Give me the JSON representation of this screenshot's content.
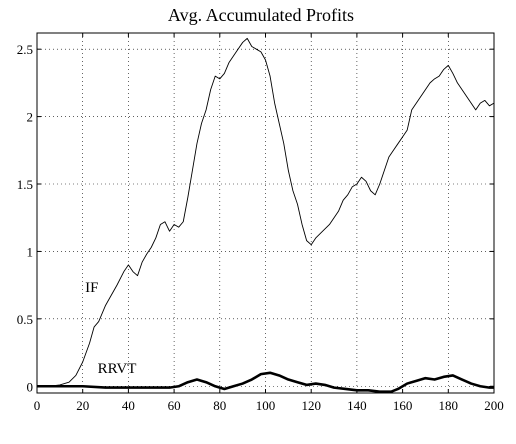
{
  "chart_data": {
    "type": "line",
    "title": "Avg. Accumulated Profits",
    "xlabel": "",
    "ylabel": "",
    "xlim": [
      0,
      200
    ],
    "ylim": [
      -0.05,
      2.62
    ],
    "x_ticks": [
      0,
      20,
      40,
      60,
      80,
      100,
      120,
      140,
      160,
      180,
      200
    ],
    "y_ticks": [
      0,
      0.5,
      1,
      1.5,
      2,
      2.5
    ],
    "y_tick_labels": [
      "0",
      "0.5",
      "1",
      "1.5",
      "2",
      "2.5"
    ],
    "grid": true,
    "legend": "none",
    "series": [
      {
        "name": "IF",
        "style": "thin",
        "points": [
          [
            0,
            0.0
          ],
          [
            5,
            0.0
          ],
          [
            10,
            0.01
          ],
          [
            14,
            0.03
          ],
          [
            17,
            0.08
          ],
          [
            20,
            0.18
          ],
          [
            23,
            0.32
          ],
          [
            25,
            0.44
          ],
          [
            27,
            0.48
          ],
          [
            30,
            0.6
          ],
          [
            32,
            0.66
          ],
          [
            35,
            0.75
          ],
          [
            38,
            0.85
          ],
          [
            40,
            0.9
          ],
          [
            42,
            0.85
          ],
          [
            44,
            0.82
          ],
          [
            46,
            0.92
          ],
          [
            48,
            0.98
          ],
          [
            50,
            1.03
          ],
          [
            52,
            1.1
          ],
          [
            54,
            1.2
          ],
          [
            56,
            1.22
          ],
          [
            58,
            1.15
          ],
          [
            60,
            1.2
          ],
          [
            62,
            1.18
          ],
          [
            64,
            1.22
          ],
          [
            66,
            1.4
          ],
          [
            68,
            1.6
          ],
          [
            70,
            1.8
          ],
          [
            72,
            1.95
          ],
          [
            74,
            2.05
          ],
          [
            76,
            2.2
          ],
          [
            78,
            2.3
          ],
          [
            80,
            2.28
          ],
          [
            82,
            2.32
          ],
          [
            84,
            2.4
          ],
          [
            86,
            2.45
          ],
          [
            88,
            2.5
          ],
          [
            90,
            2.55
          ],
          [
            92,
            2.58
          ],
          [
            94,
            2.52
          ],
          [
            96,
            2.5
          ],
          [
            98,
            2.48
          ],
          [
            100,
            2.42
          ],
          [
            102,
            2.3
          ],
          [
            104,
            2.1
          ],
          [
            106,
            1.95
          ],
          [
            108,
            1.8
          ],
          [
            110,
            1.6
          ],
          [
            112,
            1.45
          ],
          [
            114,
            1.35
          ],
          [
            116,
            1.2
          ],
          [
            118,
            1.08
          ],
          [
            120,
            1.05
          ],
          [
            122,
            1.1
          ],
          [
            125,
            1.15
          ],
          [
            128,
            1.2
          ],
          [
            130,
            1.25
          ],
          [
            132,
            1.3
          ],
          [
            134,
            1.38
          ],
          [
            136,
            1.42
          ],
          [
            138,
            1.48
          ],
          [
            140,
            1.5
          ],
          [
            142,
            1.55
          ],
          [
            144,
            1.52
          ],
          [
            146,
            1.45
          ],
          [
            148,
            1.42
          ],
          [
            150,
            1.5
          ],
          [
            152,
            1.6
          ],
          [
            154,
            1.7
          ],
          [
            156,
            1.75
          ],
          [
            158,
            1.8
          ],
          [
            160,
            1.85
          ],
          [
            162,
            1.9
          ],
          [
            164,
            2.05
          ],
          [
            166,
            2.1
          ],
          [
            168,
            2.15
          ],
          [
            170,
            2.2
          ],
          [
            172,
            2.25
          ],
          [
            174,
            2.28
          ],
          [
            176,
            2.3
          ],
          [
            178,
            2.35
          ],
          [
            180,
            2.38
          ],
          [
            182,
            2.32
          ],
          [
            184,
            2.25
          ],
          [
            186,
            2.2
          ],
          [
            188,
            2.15
          ],
          [
            190,
            2.1
          ],
          [
            192,
            2.05
          ],
          [
            194,
            2.1
          ],
          [
            196,
            2.12
          ],
          [
            198,
            2.08
          ],
          [
            200,
            2.1
          ]
        ]
      },
      {
        "name": "RRVT",
        "style": "thick",
        "points": [
          [
            0,
            0.0
          ],
          [
            10,
            0.0
          ],
          [
            20,
            0.0
          ],
          [
            30,
            -0.01
          ],
          [
            40,
            -0.01
          ],
          [
            50,
            -0.01
          ],
          [
            58,
            -0.01
          ],
          [
            62,
            0.0
          ],
          [
            66,
            0.03
          ],
          [
            70,
            0.05
          ],
          [
            74,
            0.03
          ],
          [
            78,
            0.0
          ],
          [
            82,
            -0.02
          ],
          [
            86,
            0.0
          ],
          [
            90,
            0.02
          ],
          [
            94,
            0.05
          ],
          [
            98,
            0.09
          ],
          [
            102,
            0.1
          ],
          [
            106,
            0.08
          ],
          [
            110,
            0.05
          ],
          [
            114,
            0.03
          ],
          [
            118,
            0.01
          ],
          [
            122,
            0.02
          ],
          [
            126,
            0.01
          ],
          [
            130,
            -0.01
          ],
          [
            135,
            -0.02
          ],
          [
            140,
            -0.03
          ],
          [
            145,
            -0.03
          ],
          [
            150,
            -0.04
          ],
          [
            155,
            -0.04
          ],
          [
            158,
            -0.02
          ],
          [
            162,
            0.02
          ],
          [
            166,
            0.04
          ],
          [
            170,
            0.06
          ],
          [
            174,
            0.05
          ],
          [
            178,
            0.07
          ],
          [
            182,
            0.08
          ],
          [
            186,
            0.05
          ],
          [
            190,
            0.02
          ],
          [
            194,
            0.0
          ],
          [
            198,
            -0.01
          ],
          [
            200,
            -0.01
          ]
        ]
      }
    ],
    "annotations": [
      {
        "text": "IF",
        "x": 24,
        "y": 0.7
      },
      {
        "text": "RRVT",
        "x": 35,
        "y": 0.1
      }
    ]
  }
}
